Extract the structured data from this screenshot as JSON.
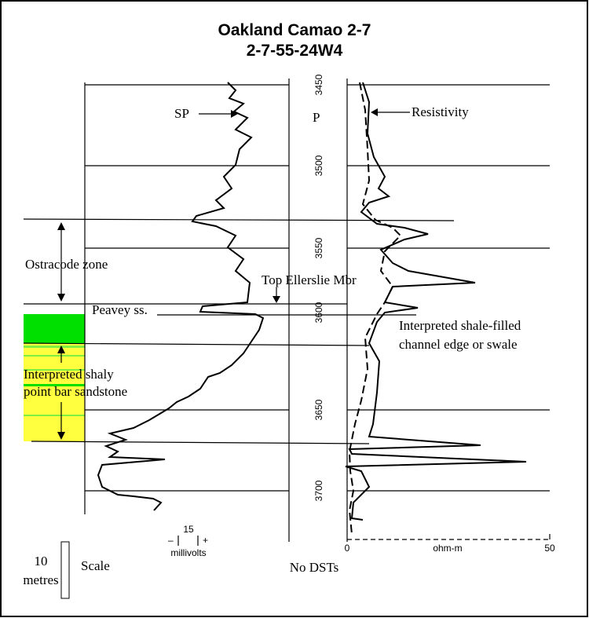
{
  "header": {
    "title": "Oakland Camao 2-7",
    "subtitle": "2-7-55-24W4"
  },
  "depth_labels": [
    "3450",
    "3500",
    "3550",
    "3600",
    "3650",
    "3700"
  ],
  "curve_labels": {
    "sp": "SP",
    "resistivity": "Resistivity",
    "p": "P"
  },
  "annotations": {
    "ostracode": "Ostracode zone",
    "ellerslie": "Top Ellerslie Mbr",
    "peavey": "Peavey ss.",
    "shale_1": "Interpreted shale-filled",
    "shale_2": "channel edge or swale",
    "shaly_1": "Interpreted shaly",
    "shaly_2": "point bar sandstone"
  },
  "sp_scale": {
    "value": "15",
    "minus": "–",
    "plus": "+",
    "unit": "millivolts"
  },
  "resistivity_scale": {
    "min": "0",
    "max": "50",
    "unit": "ohm-m"
  },
  "footer": {
    "dst": "No DSTs",
    "scale_value": "10",
    "scale_unit": "metres",
    "scale_label": "Scale"
  }
}
